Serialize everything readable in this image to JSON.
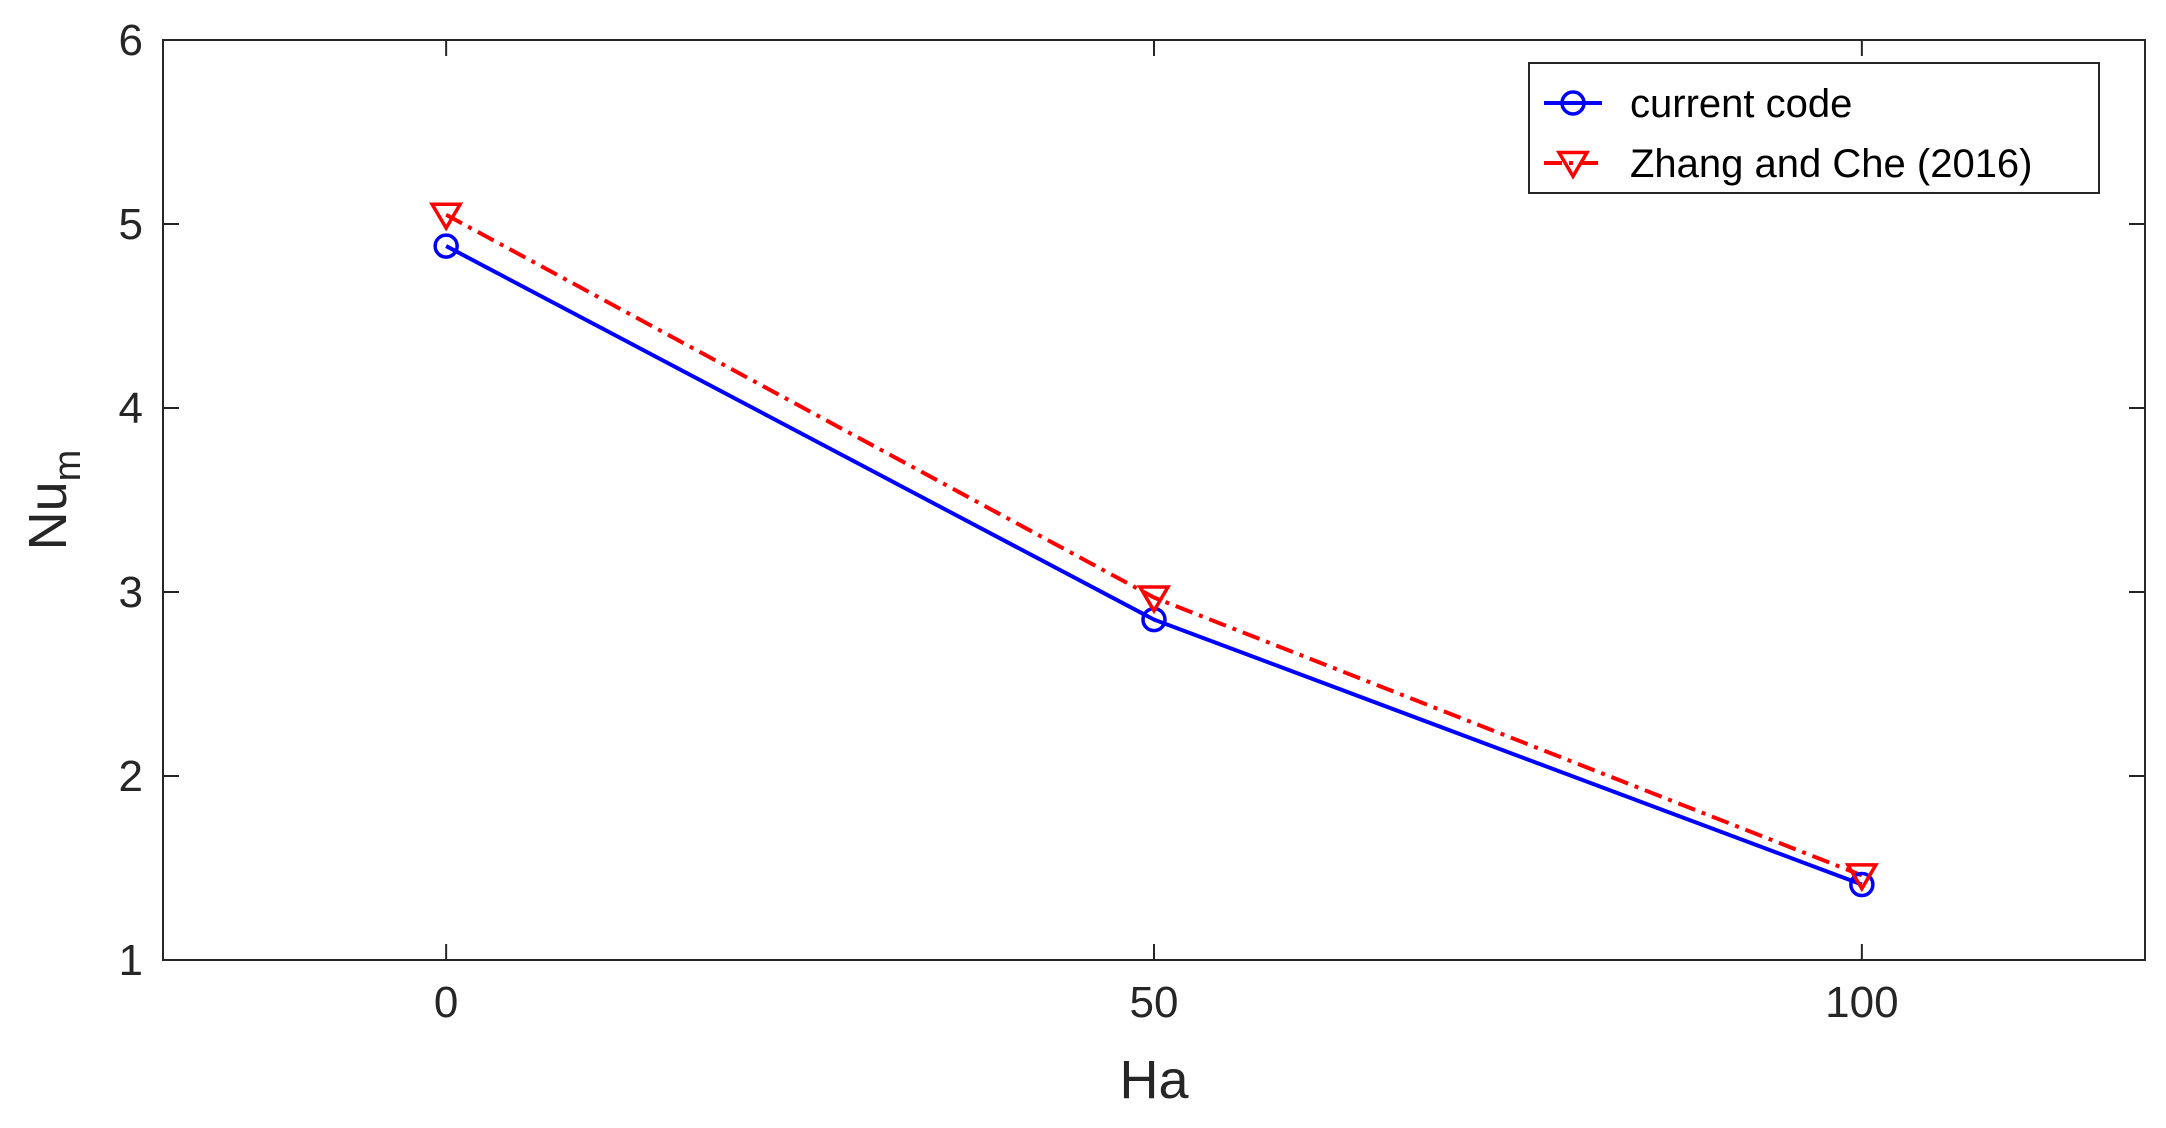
{
  "chart_data": {
    "type": "line",
    "xlabel": "Ha",
    "ylabel": {
      "main": "Nu",
      "sub": "m"
    },
    "xlim": [
      -20,
      120
    ],
    "ylim": [
      1,
      6
    ],
    "xticks": [
      0,
      50,
      100
    ],
    "yticks": [
      1,
      2,
      3,
      4,
      5,
      6
    ],
    "x": [
      0,
      50,
      100
    ],
    "grid": false,
    "legend_position": "top-right",
    "series": [
      {
        "name": "current code",
        "values": [
          4.88,
          2.85,
          1.41
        ],
        "color": "#0000ff",
        "line_style": "solid",
        "marker": "circle"
      },
      {
        "name": "Zhang and Che (2016)",
        "values": [
          5.05,
          2.97,
          1.46
        ],
        "color": "#ff0000",
        "line_style": "dash-dot",
        "marker": "triangle-down"
      }
    ]
  }
}
